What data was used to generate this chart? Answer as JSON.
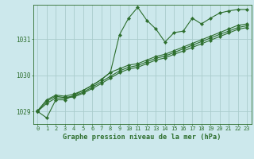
{
  "background_color": "#cce8ec",
  "grid_color": "#aacccc",
  "line_color": "#2d6e2d",
  "title": "Graphe pression niveau de la mer (hPa)",
  "ylabel_ticks": [
    1029,
    1030,
    1031
  ],
  "xlim": [
    -0.5,
    23.5
  ],
  "ylim": [
    1028.65,
    1031.95
  ],
  "series": [
    [
      1029.0,
      1028.82,
      1029.32,
      1029.32,
      1029.45,
      1029.58,
      1029.72,
      1029.88,
      1030.08,
      1031.12,
      1031.58,
      1031.88,
      1031.52,
      1031.28,
      1030.92,
      1031.18,
      1031.22,
      1031.58,
      1031.42,
      1031.58,
      1031.72,
      1031.78,
      1031.82,
      1031.82
    ],
    [
      1029.02,
      1029.32,
      1029.45,
      1029.42,
      1029.48,
      1029.58,
      1029.72,
      1029.88,
      1030.08,
      1030.18,
      1030.28,
      1030.32,
      1030.42,
      1030.52,
      1030.58,
      1030.68,
      1030.78,
      1030.88,
      1030.98,
      1031.08,
      1031.18,
      1031.28,
      1031.38,
      1031.42
    ],
    [
      1029.0,
      1029.28,
      1029.42,
      1029.38,
      1029.43,
      1029.53,
      1029.67,
      1029.82,
      1029.97,
      1030.12,
      1030.22,
      1030.27,
      1030.37,
      1030.47,
      1030.53,
      1030.63,
      1030.73,
      1030.83,
      1030.93,
      1031.03,
      1031.13,
      1031.22,
      1031.32,
      1031.37
    ],
    [
      1029.0,
      1029.22,
      1029.37,
      1029.37,
      1029.4,
      1029.5,
      1029.63,
      1029.77,
      1029.92,
      1030.07,
      1030.17,
      1030.22,
      1030.32,
      1030.42,
      1030.48,
      1030.58,
      1030.67,
      1030.77,
      1030.87,
      1030.97,
      1031.07,
      1031.17,
      1031.27,
      1031.32
    ]
  ],
  "marker": "D",
  "markersize": 2.2,
  "linewidth": 0.8,
  "tick_fontsize": 5.0,
  "xlabel_fontsize": 6.2,
  "ytick_fontsize": 5.5
}
